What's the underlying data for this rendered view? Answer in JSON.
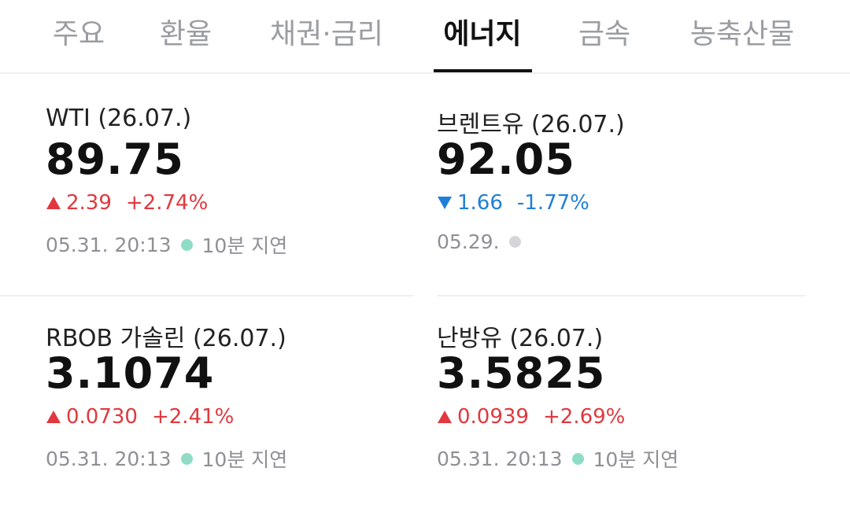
{
  "tabs": [
    {
      "label": "주요",
      "active": false
    },
    {
      "label": "환율",
      "active": false
    },
    {
      "label": "채권·금리",
      "active": false
    },
    {
      "label": "에너지",
      "active": true
    },
    {
      "label": "금속",
      "active": false
    },
    {
      "label": "농축산물",
      "active": false
    }
  ],
  "cards": [
    {
      "name": "WTI (26.07.)",
      "price": "89.75",
      "direction": "up",
      "change": "2.39",
      "percent": "+2.74%",
      "time": "05.31. 20:13",
      "dot_color": "#8fdcc6",
      "delay": "10분 지연"
    },
    {
      "name": "브렌트유 (26.07.)",
      "price": "92.05",
      "direction": "down",
      "change": "1.66",
      "percent": "-1.77%",
      "time": "05.29.",
      "dot_color": "#d4d6da"
    },
    {
      "name": "RBOB 가솔린 (26.07.)",
      "price": "3.1074",
      "direction": "up",
      "change": "0.0730",
      "percent": "+2.41%",
      "time": "05.31. 20:13",
      "dot_color": "#8fdcc6",
      "delay": "10분 지연"
    },
    {
      "name": "난방유 (26.07.)",
      "price": "3.5825",
      "direction": "up",
      "change": "0.0939",
      "percent": "+2.69%",
      "time": "05.31. 20:13",
      "dot_color": "#8fdcc6",
      "delay": "10분 지연"
    }
  ]
}
